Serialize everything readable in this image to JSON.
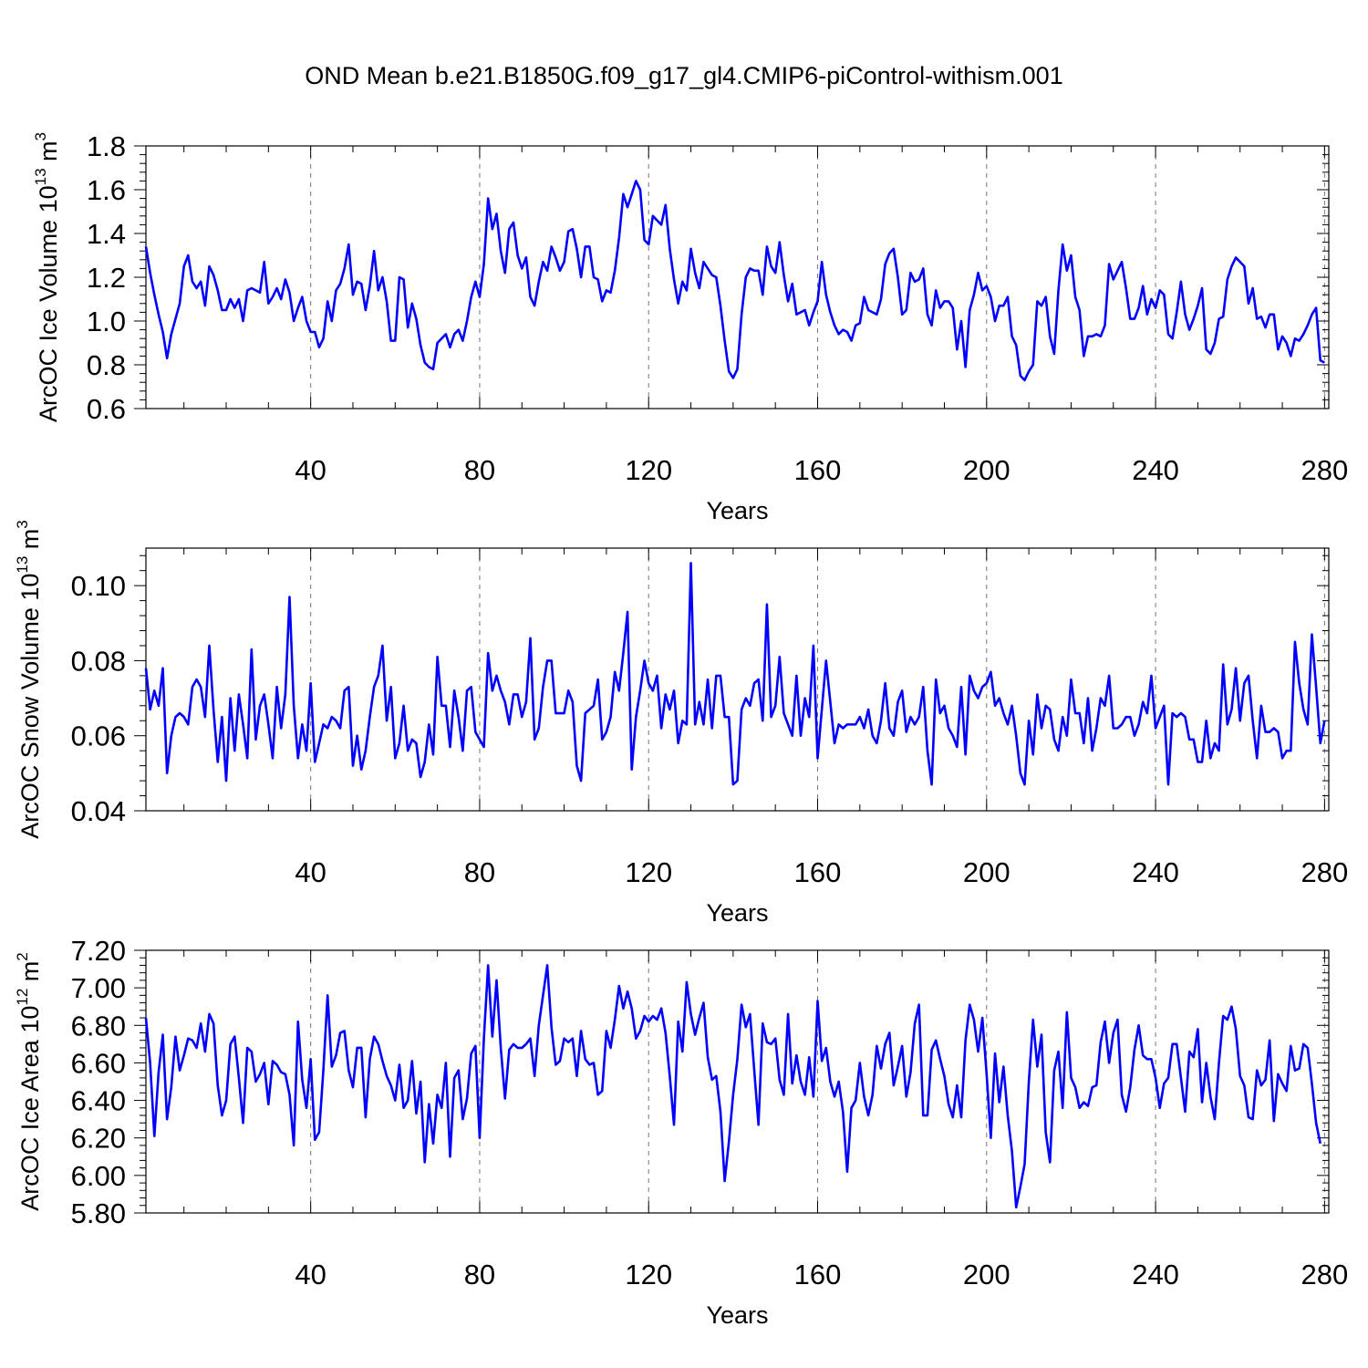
{
  "title": "OND Mean b.e21.B1850G.f09_g17_gl4.CMIP6-piControl-withism.001",
  "series_color": "#0000ff",
  "chart_data": [
    {
      "type": "line",
      "ylabel": "ArcOC Ice Volume 10",
      "ylabel_exp": "13",
      "ylabel_unit": " m",
      "ylabel_unit_exp": "3",
      "xlabel": "Years",
      "xlim": [
        1,
        281
      ],
      "ylim": [
        0.6,
        1.8
      ],
      "xticks": [
        40,
        80,
        120,
        160,
        200,
        240,
        280
      ],
      "xtick_labels": [
        "40",
        "80",
        "120",
        "160",
        "200",
        "240",
        "280"
      ],
      "yticks": [
        0.6,
        0.8,
        1.0,
        1.2,
        1.4,
        1.6,
        1.8
      ],
      "ytick_labels": [
        "0.6",
        "0.8",
        "1.0",
        "1.2",
        "1.4",
        "1.6",
        "1.8"
      ],
      "x_start": 1,
      "values": [
        1.34,
        1.22,
        1.12,
        1.03,
        0.95,
        0.83,
        0.94,
        1.01,
        1.08,
        1.25,
        1.3,
        1.18,
        1.15,
        1.18,
        1.07,
        1.25,
        1.21,
        1.14,
        1.05,
        1.05,
        1.1,
        1.06,
        1.1,
        1.0,
        1.14,
        1.15,
        1.14,
        1.13,
        1.27,
        1.08,
        1.11,
        1.15,
        1.1,
        1.19,
        1.13,
        1.0,
        1.06,
        1.11,
        1.0,
        0.95,
        0.95,
        0.88,
        0.92,
        1.09,
        1.0,
        1.14,
        1.17,
        1.24,
        1.35,
        1.12,
        1.18,
        1.17,
        1.05,
        1.16,
        1.32,
        1.14,
        1.2,
        1.09,
        0.91,
        0.91,
        1.2,
        1.19,
        0.97,
        1.08,
        1.01,
        0.89,
        0.81,
        0.79,
        0.78,
        0.9,
        0.92,
        0.94,
        0.88,
        0.94,
        0.96,
        0.91,
        1.0,
        1.11,
        1.18,
        1.11,
        1.26,
        1.56,
        1.42,
        1.49,
        1.32,
        1.22,
        1.42,
        1.45,
        1.3,
        1.24,
        1.29,
        1.11,
        1.07,
        1.18,
        1.27,
        1.23,
        1.34,
        1.29,
        1.23,
        1.27,
        1.41,
        1.42,
        1.33,
        1.2,
        1.34,
        1.34,
        1.2,
        1.19,
        1.09,
        1.14,
        1.13,
        1.23,
        1.38,
        1.58,
        1.52,
        1.58,
        1.64,
        1.6,
        1.37,
        1.35,
        1.48,
        1.46,
        1.44,
        1.53,
        1.33,
        1.19,
        1.08,
        1.18,
        1.14,
        1.33,
        1.22,
        1.15,
        1.27,
        1.24,
        1.21,
        1.2,
        1.07,
        0.91,
        0.77,
        0.74,
        0.78,
        1.03,
        1.2,
        1.24,
        1.23,
        1.23,
        1.12,
        1.34,
        1.25,
        1.22,
        1.36,
        1.21,
        1.09,
        1.17,
        1.03,
        1.04,
        1.05,
        0.98,
        1.04,
        1.09,
        1.27,
        1.12,
        1.04,
        0.98,
        0.94,
        0.96,
        0.95,
        0.91,
        0.98,
        0.99,
        1.11,
        1.05,
        1.04,
        1.03,
        1.1,
        1.26,
        1.31,
        1.33,
        1.2,
        1.03,
        1.05,
        1.22,
        1.18,
        1.19,
        1.24,
        1.03,
        0.98,
        1.14,
        1.06,
        1.09,
        1.09,
        1.06,
        0.87,
        1.0,
        0.79,
        1.05,
        1.12,
        1.22,
        1.14,
        1.16,
        1.11,
        1.0,
        1.07,
        1.07,
        1.11,
        0.93,
        0.89,
        0.75,
        0.73,
        0.77,
        0.8,
        1.09,
        1.07,
        1.11,
        0.93,
        0.85,
        1.14,
        1.35,
        1.23,
        1.3,
        1.11,
        1.05,
        0.84,
        0.93,
        0.93,
        0.94,
        0.93,
        0.98,
        1.26,
        1.19,
        1.23,
        1.27,
        1.15,
        1.01,
        1.01,
        1.06,
        1.16,
        1.03,
        1.1,
        1.06,
        1.14,
        1.12,
        0.94,
        0.92,
        1.04,
        1.18,
        1.03,
        0.96,
        1.01,
        1.07,
        1.15,
        0.87,
        0.85,
        0.9,
        1.01,
        1.02,
        1.19,
        1.25,
        1.29,
        1.27,
        1.25,
        1.08,
        1.15,
        1.01,
        1.02,
        0.97,
        1.03,
        1.03,
        0.87,
        0.93,
        0.9,
        0.84,
        0.92,
        0.91,
        0.94,
        0.98,
        1.03,
        1.06,
        0.82,
        0.81
      ]
    },
    {
      "type": "line",
      "ylabel": "ArcOC Snow Volume 10",
      "ylabel_exp": "13",
      "ylabel_unit": " m",
      "ylabel_unit_exp": "3",
      "xlabel": "Years",
      "xlim": [
        1,
        281
      ],
      "ylim": [
        0.04,
        0.11
      ],
      "xticks": [
        40,
        80,
        120,
        160,
        200,
        240,
        280
      ],
      "xtick_labels": [
        "40",
        "80",
        "120",
        "160",
        "200",
        "240",
        "280"
      ],
      "yticks": [
        0.04,
        0.06,
        0.08,
        0.1
      ],
      "ytick_labels": [
        "0.04",
        "0.06",
        "0.08",
        "0.10"
      ],
      "x_start": 1,
      "values": [
        0.078,
        0.067,
        0.072,
        0.068,
        0.078,
        0.05,
        0.06,
        0.065,
        0.066,
        0.065,
        0.063,
        0.073,
        0.075,
        0.073,
        0.065,
        0.084,
        0.067,
        0.053,
        0.065,
        0.048,
        0.07,
        0.056,
        0.071,
        0.063,
        0.054,
        0.083,
        0.059,
        0.068,
        0.071,
        0.063,
        0.054,
        0.073,
        0.062,
        0.071,
        0.097,
        0.068,
        0.054,
        0.063,
        0.056,
        0.074,
        0.053,
        0.058,
        0.063,
        0.062,
        0.065,
        0.064,
        0.062,
        0.072,
        0.073,
        0.052,
        0.06,
        0.051,
        0.056,
        0.065,
        0.073,
        0.076,
        0.084,
        0.064,
        0.073,
        0.054,
        0.058,
        0.068,
        0.056,
        0.059,
        0.058,
        0.049,
        0.053,
        0.063,
        0.055,
        0.081,
        0.068,
        0.068,
        0.057,
        0.072,
        0.065,
        0.056,
        0.072,
        0.073,
        0.061,
        0.059,
        0.057,
        0.082,
        0.072,
        0.076,
        0.072,
        0.069,
        0.063,
        0.071,
        0.071,
        0.065,
        0.069,
        0.086,
        0.059,
        0.062,
        0.073,
        0.08,
        0.08,
        0.066,
        0.066,
        0.066,
        0.072,
        0.069,
        0.052,
        0.048,
        0.066,
        0.067,
        0.068,
        0.075,
        0.059,
        0.061,
        0.065,
        0.077,
        0.072,
        0.082,
        0.093,
        0.051,
        0.065,
        0.072,
        0.08,
        0.074,
        0.072,
        0.076,
        0.062,
        0.071,
        0.067,
        0.072,
        0.058,
        0.064,
        0.063,
        0.106,
        0.063,
        0.069,
        0.063,
        0.075,
        0.062,
        0.076,
        0.076,
        0.065,
        0.065,
        0.047,
        0.048,
        0.067,
        0.07,
        0.068,
        0.074,
        0.075,
        0.064,
        0.095,
        0.065,
        0.068,
        0.081,
        0.066,
        0.063,
        0.06,
        0.076,
        0.06,
        0.07,
        0.065,
        0.084,
        0.054,
        0.067,
        0.08,
        0.069,
        0.058,
        0.063,
        0.062,
        0.063,
        0.063,
        0.063,
        0.065,
        0.062,
        0.067,
        0.06,
        0.058,
        0.064,
        0.074,
        0.062,
        0.06,
        0.069,
        0.072,
        0.061,
        0.065,
        0.063,
        0.065,
        0.073,
        0.056,
        0.047,
        0.075,
        0.066,
        0.068,
        0.062,
        0.06,
        0.057,
        0.073,
        0.055,
        0.076,
        0.072,
        0.07,
        0.073,
        0.074,
        0.077,
        0.068,
        0.07,
        0.066,
        0.063,
        0.068,
        0.06,
        0.05,
        0.047,
        0.064,
        0.055,
        0.071,
        0.062,
        0.068,
        0.067,
        0.059,
        0.056,
        0.065,
        0.06,
        0.075,
        0.066,
        0.066,
        0.058,
        0.07,
        0.056,
        0.062,
        0.07,
        0.068,
        0.076,
        0.062,
        0.062,
        0.063,
        0.065,
        0.065,
        0.06,
        0.063,
        0.069,
        0.066,
        0.076,
        0.062,
        0.065,
        0.068,
        0.047,
        0.066,
        0.065,
        0.066,
        0.065,
        0.059,
        0.059,
        0.053,
        0.053,
        0.064,
        0.054,
        0.058,
        0.056,
        0.079,
        0.063,
        0.067,
        0.078,
        0.064,
        0.074,
        0.076,
        0.064,
        0.054,
        0.068,
        0.061,
        0.061,
        0.062,
        0.061,
        0.054,
        0.056,
        0.056,
        0.085,
        0.074,
        0.067,
        0.063,
        0.087,
        0.073,
        0.058,
        0.064
      ]
    },
    {
      "type": "line",
      "ylabel": "ArcOC Ice Area 10",
      "ylabel_exp": "12",
      "ylabel_unit": " m",
      "ylabel_unit_exp": "2",
      "xlabel": "Years",
      "xlim": [
        1,
        281
      ],
      "ylim": [
        5.8,
        7.2
      ],
      "xticks": [
        40,
        80,
        120,
        160,
        200,
        240,
        280
      ],
      "xtick_labels": [
        "40",
        "80",
        "120",
        "160",
        "200",
        "240",
        "280"
      ],
      "yticks": [
        5.8,
        6.0,
        6.2,
        6.4,
        6.6,
        6.8,
        7.0,
        7.2
      ],
      "ytick_labels": [
        "5.80",
        "6.00",
        "6.20",
        "6.40",
        "6.60",
        "6.80",
        "7.00",
        "7.20"
      ],
      "x_start": 1,
      "values": [
        6.84,
        6.6,
        6.21,
        6.55,
        6.75,
        6.3,
        6.47,
        6.74,
        6.56,
        6.64,
        6.73,
        6.72,
        6.68,
        6.81,
        6.66,
        6.86,
        6.81,
        6.48,
        6.32,
        6.4,
        6.7,
        6.74,
        6.52,
        6.28,
        6.68,
        6.66,
        6.5,
        6.54,
        6.6,
        6.38,
        6.61,
        6.59,
        6.55,
        6.54,
        6.43,
        6.16,
        6.82,
        6.51,
        6.36,
        6.62,
        6.19,
        6.23,
        6.56,
        6.96,
        6.58,
        6.64,
        6.76,
        6.77,
        6.56,
        6.47,
        6.68,
        6.68,
        6.31,
        6.62,
        6.74,
        6.7,
        6.61,
        6.53,
        6.48,
        6.4,
        6.59,
        6.36,
        6.4,
        6.61,
        6.33,
        6.5,
        6.07,
        6.38,
        6.17,
        6.43,
        6.36,
        6.6,
        6.1,
        6.52,
        6.56,
        6.3,
        6.41,
        6.65,
        6.69,
        6.2,
        6.73,
        7.12,
        6.74,
        7.04,
        6.68,
        6.41,
        6.67,
        6.7,
        6.68,
        6.68,
        6.7,
        6.73,
        6.53,
        6.8,
        6.96,
        7.12,
        6.79,
        6.59,
        6.61,
        6.73,
        6.71,
        6.73,
        6.53,
        6.77,
        6.62,
        6.59,
        6.6,
        6.43,
        6.45,
        6.77,
        6.68,
        6.83,
        7.01,
        6.89,
        6.98,
        6.89,
        6.73,
        6.77,
        6.85,
        6.82,
        6.85,
        6.83,
        6.89,
        6.76,
        6.53,
        6.27,
        6.82,
        6.66,
        7.03,
        6.86,
        6.75,
        6.84,
        6.92,
        6.63,
        6.51,
        6.53,
        6.34,
        5.97,
        6.18,
        6.43,
        6.62,
        6.91,
        6.79,
        6.86,
        6.56,
        6.27,
        6.81,
        6.71,
        6.7,
        6.73,
        6.51,
        6.43,
        6.86,
        6.49,
        6.64,
        6.5,
        6.43,
        6.63,
        6.42,
        6.93,
        6.61,
        6.68,
        6.5,
        6.42,
        6.5,
        6.34,
        6.02,
        6.36,
        6.4,
        6.6,
        6.42,
        6.32,
        6.43,
        6.69,
        6.57,
        6.7,
        6.76,
        6.48,
        6.58,
        6.69,
        6.42,
        6.55,
        6.81,
        6.91,
        6.32,
        6.32,
        6.67,
        6.72,
        6.62,
        6.53,
        6.38,
        6.31,
        6.48,
        6.31,
        6.72,
        6.91,
        6.83,
        6.66,
        6.84,
        6.54,
        6.2,
        6.65,
        6.39,
        6.58,
        6.32,
        6.13,
        5.83,
        5.94,
        6.06,
        6.5,
        6.83,
        6.58,
        6.75,
        6.23,
        6.07,
        6.56,
        6.66,
        6.36,
        6.87,
        6.52,
        6.47,
        6.36,
        6.39,
        6.37,
        6.47,
        6.48,
        6.71,
        6.82,
        6.6,
        6.76,
        6.83,
        6.43,
        6.34,
        6.47,
        6.67,
        6.8,
        6.64,
        6.62,
        6.62,
        6.52,
        6.36,
        6.49,
        6.52,
        6.7,
        6.7,
        6.52,
        6.34,
        6.66,
        6.63,
        6.78,
        6.39,
        6.6,
        6.42,
        6.3,
        6.6,
        6.85,
        6.83,
        6.9,
        6.78,
        6.53,
        6.48,
        6.31,
        6.3,
        6.56,
        6.48,
        6.51,
        6.72,
        6.29,
        6.54,
        6.49,
        6.45,
        6.69,
        6.56,
        6.57,
        6.7,
        6.68,
        6.49,
        6.28,
        6.17
      ]
    }
  ]
}
